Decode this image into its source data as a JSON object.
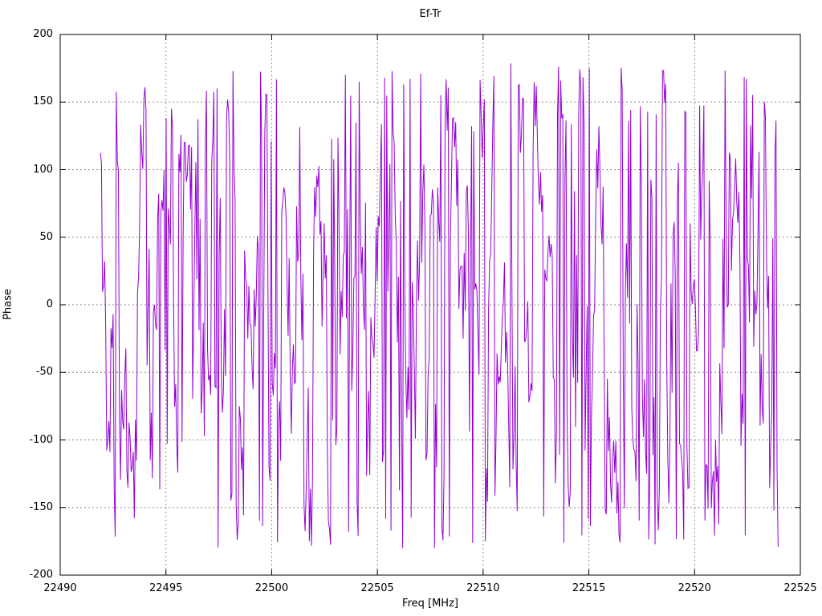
{
  "window": {
    "background_color": "#ffffff",
    "text_color": "#000000"
  },
  "chart_data": {
    "type": "line",
    "title": "Ef-Tr",
    "xlabel": "Freq [MHz]",
    "ylabel": "Phase",
    "xlim": [
      22490,
      22525
    ],
    "ylim": [
      -200,
      200
    ],
    "x_ticks": [
      22490,
      22495,
      22500,
      22505,
      22510,
      22515,
      22520,
      22525
    ],
    "x_tick_labels": [
      "22490",
      "22495",
      "22500",
      "22505",
      "22510",
      "22515",
      "22520",
      "22525"
    ],
    "y_ticks": [
      200,
      150,
      100,
      50,
      0,
      -50,
      -100,
      -150,
      -200
    ],
    "y_tick_labels": [
      "200",
      "150",
      "100",
      "50",
      "0",
      "-50",
      "-100",
      "-150",
      "-200"
    ],
    "grid": "dashed gray at every interior tick, both axes",
    "grid_color": "#8c8c8c",
    "axis_color": "#000000",
    "legend": "none",
    "series": [
      {
        "name": "Ef-Tr",
        "color": "#9400d3",
        "style": "wrapped interferometer phase vs frequency; phase wraps at ±180° so the trace appears as dense near-vertical purple strokes spanning the band",
        "x_start": 22491.9,
        "x_end": 22523.95,
        "n_points": 640,
        "y_min": -181,
        "y_max": 181,
        "seed": 1337,
        "jump_probability": 0.45,
        "walk_step_max": 55
      }
    ]
  }
}
